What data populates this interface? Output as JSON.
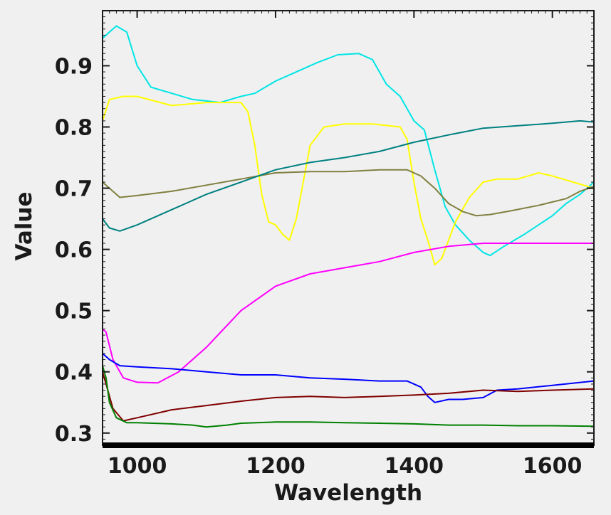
{
  "chart_data": {
    "type": "line",
    "title": "",
    "xlabel": "Wavelength",
    "ylabel": "Value",
    "xlim": [
      950,
      1660
    ],
    "ylim": [
      0.28,
      0.99
    ],
    "xticks": [
      1000,
      1200,
      1400,
      1600
    ],
    "yticks": [
      0.3,
      0.4,
      0.5,
      0.6,
      0.7,
      0.8,
      0.9
    ],
    "grid": false,
    "legend": "none",
    "series": [
      {
        "color": "#00e5e5",
        "x": [
          950,
          960,
          970,
          985,
          1000,
          1020,
          1050,
          1080,
          1120,
          1150,
          1170,
          1200,
          1230,
          1260,
          1290,
          1320,
          1340,
          1360,
          1380,
          1400,
          1415,
          1430,
          1445,
          1460,
          1480,
          1500,
          1510,
          1530,
          1560,
          1600,
          1620,
          1640,
          1660
        ],
        "y": [
          0.945,
          0.955,
          0.965,
          0.955,
          0.9,
          0.865,
          0.855,
          0.845,
          0.84,
          0.85,
          0.855,
          0.875,
          0.89,
          0.905,
          0.918,
          0.92,
          0.91,
          0.87,
          0.85,
          0.81,
          0.795,
          0.73,
          0.67,
          0.64,
          0.615,
          0.595,
          0.59,
          0.605,
          0.625,
          0.655,
          0.675,
          0.69,
          0.71
        ]
      },
      {
        "color": "#ffff00",
        "x": [
          950,
          960,
          980,
          1000,
          1050,
          1100,
          1150,
          1160,
          1170,
          1180,
          1190,
          1200,
          1210,
          1220,
          1230,
          1240,
          1250,
          1270,
          1300,
          1340,
          1380,
          1390,
          1400,
          1410,
          1420,
          1430,
          1440,
          1450,
          1460,
          1480,
          1500,
          1520,
          1550,
          1580,
          1600,
          1630,
          1660
        ],
        "y": [
          0.81,
          0.845,
          0.85,
          0.85,
          0.835,
          0.84,
          0.84,
          0.825,
          0.77,
          0.69,
          0.645,
          0.64,
          0.625,
          0.615,
          0.65,
          0.71,
          0.77,
          0.8,
          0.805,
          0.805,
          0.8,
          0.78,
          0.71,
          0.65,
          0.615,
          0.575,
          0.585,
          0.615,
          0.645,
          0.685,
          0.71,
          0.715,
          0.715,
          0.725,
          0.72,
          0.71,
          0.7
        ]
      },
      {
        "color": "#808040",
        "x": [
          950,
          960,
          975,
          1000,
          1050,
          1100,
          1150,
          1200,
          1250,
          1300,
          1350,
          1390,
          1410,
          1430,
          1450,
          1470,
          1490,
          1510,
          1540,
          1580,
          1620,
          1640,
          1660
        ],
        "y": [
          0.71,
          0.7,
          0.685,
          0.688,
          0.695,
          0.705,
          0.715,
          0.725,
          0.727,
          0.727,
          0.73,
          0.73,
          0.72,
          0.7,
          0.675,
          0.662,
          0.655,
          0.657,
          0.663,
          0.672,
          0.683,
          0.695,
          0.703
        ]
      },
      {
        "color": "#008080",
        "x": [
          950,
          960,
          975,
          1000,
          1050,
          1100,
          1150,
          1200,
          1250,
          1300,
          1350,
          1400,
          1450,
          1500,
          1550,
          1600,
          1640,
          1660
        ],
        "y": [
          0.65,
          0.635,
          0.63,
          0.64,
          0.665,
          0.69,
          0.71,
          0.73,
          0.742,
          0.75,
          0.76,
          0.775,
          0.787,
          0.798,
          0.802,
          0.806,
          0.81,
          0.808
        ]
      },
      {
        "color": "#ff00ff",
        "x": [
          950,
          955,
          965,
          980,
          1000,
          1030,
          1060,
          1100,
          1150,
          1200,
          1250,
          1300,
          1350,
          1400,
          1450,
          1500,
          1550,
          1600,
          1660
        ],
        "y": [
          0.47,
          0.465,
          0.42,
          0.39,
          0.383,
          0.382,
          0.4,
          0.44,
          0.5,
          0.54,
          0.56,
          0.57,
          0.58,
          0.595,
          0.605,
          0.61,
          0.61,
          0.61,
          0.61
        ]
      },
      {
        "color": "#0000ff",
        "x": [
          950,
          955,
          960,
          975,
          1000,
          1050,
          1100,
          1150,
          1200,
          1250,
          1300,
          1350,
          1390,
          1410,
          1420,
          1430,
          1450,
          1470,
          1500,
          1520,
          1550,
          1600,
          1660
        ],
        "y": [
          0.43,
          0.425,
          0.42,
          0.41,
          0.408,
          0.405,
          0.4,
          0.395,
          0.395,
          0.39,
          0.388,
          0.385,
          0.385,
          0.375,
          0.36,
          0.35,
          0.355,
          0.355,
          0.358,
          0.37,
          0.372,
          0.378,
          0.385
        ]
      },
      {
        "color": "#800000",
        "x": [
          950,
          955,
          965,
          980,
          1000,
          1050,
          1100,
          1150,
          1200,
          1250,
          1300,
          1350,
          1400,
          1450,
          1500,
          1550,
          1600,
          1660
        ],
        "y": [
          0.4,
          0.38,
          0.34,
          0.32,
          0.325,
          0.338,
          0.345,
          0.352,
          0.358,
          0.36,
          0.358,
          0.36,
          0.362,
          0.365,
          0.37,
          0.368,
          0.37,
          0.372
        ]
      },
      {
        "color": "#008000",
        "x": [
          950,
          955,
          960,
          970,
          985,
          1000,
          1050,
          1080,
          1100,
          1130,
          1150,
          1200,
          1250,
          1300,
          1350,
          1400,
          1450,
          1500,
          1550,
          1600,
          1660
        ],
        "y": [
          0.41,
          0.39,
          0.35,
          0.325,
          0.317,
          0.317,
          0.315,
          0.313,
          0.31,
          0.313,
          0.316,
          0.318,
          0.318,
          0.317,
          0.316,
          0.315,
          0.313,
          0.313,
          0.312,
          0.312,
          0.311
        ]
      }
    ]
  }
}
